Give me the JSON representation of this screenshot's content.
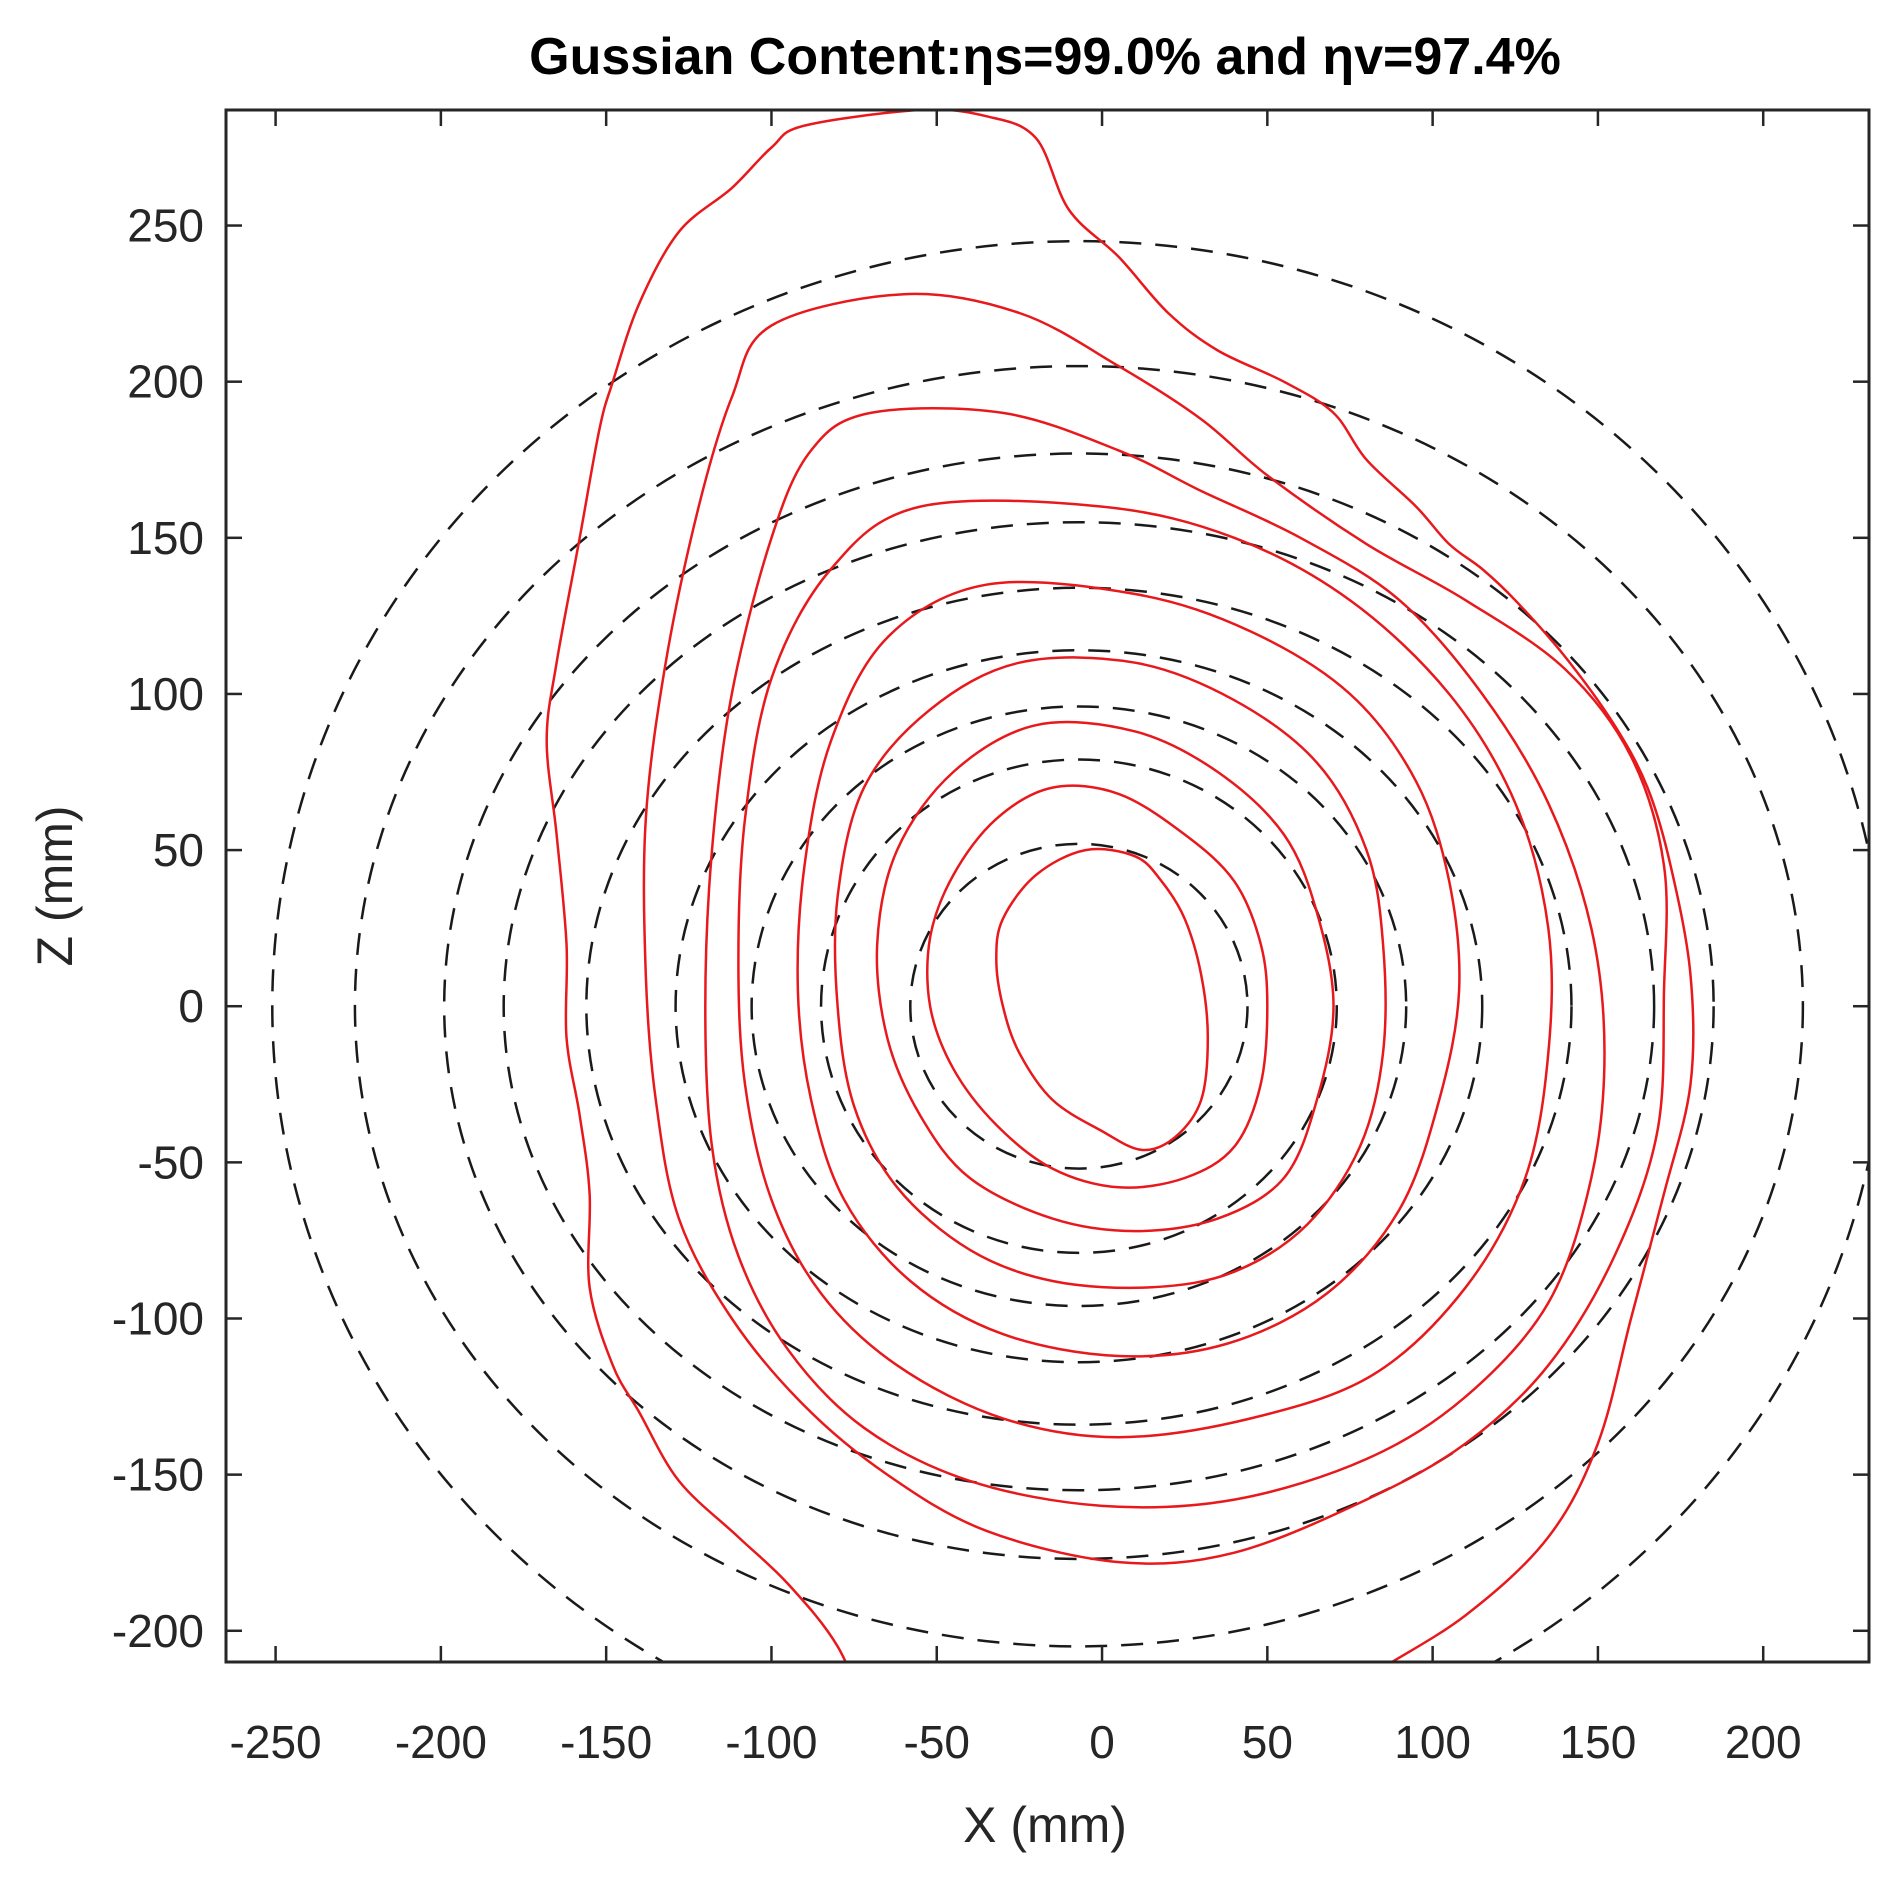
{
  "chart_data": {
    "type": "contour",
    "title": "Gussian Content:ηs=99.0% and ηv=97.4%",
    "xlabel": "X (mm)",
    "ylabel": "Z (mm)",
    "xlim": [
      -265,
      232
    ],
    "ylim": [
      -210,
      287
    ],
    "xticks": [
      -250,
      -200,
      -150,
      -100,
      -50,
      0,
      50,
      100,
      150,
      200
    ],
    "yticks": [
      -200,
      -150,
      -100,
      -50,
      0,
      50,
      100,
      150,
      200,
      250
    ],
    "xtick_labels": [
      "-250",
      "-200",
      "-150",
      "-100",
      "-50",
      "0",
      "50",
      "100",
      "150",
      "200"
    ],
    "ytick_labels": [
      "-200",
      "-150",
      "-100",
      "-50",
      "0",
      "50",
      "100",
      "150",
      "200",
      "250"
    ],
    "grid": false,
    "colors": {
      "measured": "#e8191c",
      "gaussian_fit": "#1a1a1a",
      "axes": "#262626"
    },
    "series": [
      {
        "style": "dashed",
        "color": "#1a1a1a",
        "ellipses": [
          {
            "cx": -7,
            "cz": 0,
            "rx": 51,
            "rz": 52
          },
          {
            "cx": -7,
            "cz": 0,
            "rx": 78,
            "rz": 79
          },
          {
            "cx": -7,
            "cz": 0,
            "rx": 99,
            "rz": 96
          },
          {
            "cx": -7,
            "cz": 0,
            "rx": 122,
            "rz": 114
          },
          {
            "cx": -7,
            "cz": 0,
            "rx": 149,
            "rz": 134
          },
          {
            "cx": -7,
            "cz": 0,
            "rx": 174,
            "rz": 155
          },
          {
            "cx": -7,
            "cz": 0,
            "rx": 192,
            "rz": 177
          },
          {
            "cx": -7,
            "cz": 0,
            "rx": 219,
            "rz": 205
          },
          {
            "cx": -7,
            "cz": 0,
            "rx": 244,
            "rz": 245
          }
        ]
      },
      {
        "style": "solid",
        "color": "#e8191c",
        "contours": [
          [
            [
              -5,
              50
            ],
            [
              10,
              48
            ],
            [
              18,
              40
            ],
            [
              25,
              28
            ],
            [
              30,
              10
            ],
            [
              32,
              -10
            ],
            [
              30,
              -30
            ],
            [
              22,
              -42
            ],
            [
              12,
              -46
            ],
            [
              0,
              -40
            ],
            [
              -15,
              -30
            ],
            [
              -25,
              -15
            ],
            [
              -30,
              0
            ],
            [
              -32,
              15
            ],
            [
              -30,
              28
            ],
            [
              -20,
              42
            ]
          ],
          [
            [
              -15,
              70
            ],
            [
              5,
              68
            ],
            [
              25,
              55
            ],
            [
              40,
              40
            ],
            [
              48,
              20
            ],
            [
              50,
              0
            ],
            [
              48,
              -25
            ],
            [
              40,
              -45
            ],
            [
              25,
              -55
            ],
            [
              5,
              -58
            ],
            [
              -15,
              -52
            ],
            [
              -32,
              -38
            ],
            [
              -45,
              -20
            ],
            [
              -52,
              0
            ],
            [
              -52,
              22
            ],
            [
              -45,
              42
            ],
            [
              -32,
              60
            ]
          ],
          [
            [
              -20,
              90
            ],
            [
              10,
              88
            ],
            [
              35,
              75
            ],
            [
              55,
              55
            ],
            [
              65,
              30
            ],
            [
              70,
              0
            ],
            [
              65,
              -30
            ],
            [
              55,
              -55
            ],
            [
              35,
              -68
            ],
            [
              10,
              -72
            ],
            [
              -15,
              -68
            ],
            [
              -40,
              -55
            ],
            [
              -55,
              -35
            ],
            [
              -65,
              -10
            ],
            [
              -68,
              20
            ],
            [
              -62,
              50
            ],
            [
              -45,
              75
            ]
          ],
          [
            [
              -25,
              110
            ],
            [
              10,
              110
            ],
            [
              40,
              98
            ],
            [
              65,
              78
            ],
            [
              80,
              50
            ],
            [
              85,
              20
            ],
            [
              85,
              -15
            ],
            [
              78,
              -45
            ],
            [
              62,
              -70
            ],
            [
              40,
              -85
            ],
            [
              15,
              -90
            ],
            [
              -15,
              -88
            ],
            [
              -40,
              -78
            ],
            [
              -62,
              -58
            ],
            [
              -75,
              -32
            ],
            [
              -80,
              0
            ],
            [
              -80,
              35
            ],
            [
              -72,
              70
            ],
            [
              -52,
              95
            ]
          ],
          [
            [
              -35,
              135
            ],
            [
              10,
              132
            ],
            [
              45,
              120
            ],
            [
              75,
              100
            ],
            [
              95,
              72
            ],
            [
              105,
              40
            ],
            [
              108,
              5
            ],
            [
              102,
              -30
            ],
            [
              90,
              -65
            ],
            [
              68,
              -92
            ],
            [
              38,
              -108
            ],
            [
              5,
              -112
            ],
            [
              -30,
              -105
            ],
            [
              -58,
              -88
            ],
            [
              -78,
              -62
            ],
            [
              -88,
              -30
            ],
            [
              -92,
              5
            ],
            [
              -90,
              45
            ],
            [
              -82,
              85
            ],
            [
              -65,
              118
            ]
          ],
          [
            [
              -55,
              160
            ],
            [
              0,
              160
            ],
            [
              40,
              150
            ],
            [
              75,
              130
            ],
            [
              105,
              100
            ],
            [
              125,
              65
            ],
            [
              135,
              25
            ],
            [
              135,
              -15
            ],
            [
              128,
              -55
            ],
            [
              110,
              -90
            ],
            [
              82,
              -118
            ],
            [
              45,
              -132
            ],
            [
              5,
              -138
            ],
            [
              -30,
              -132
            ],
            [
              -62,
              -115
            ],
            [
              -85,
              -92
            ],
            [
              -100,
              -62
            ],
            [
              -108,
              -25
            ],
            [
              -110,
              15
            ],
            [
              -108,
              60
            ],
            [
              -100,
              105
            ],
            [
              -82,
              140
            ]
          ],
          [
            [
              -70,
              190
            ],
            [
              -30,
              190
            ],
            [
              5,
              178
            ],
            [
              30,
              165
            ],
            [
              60,
              150
            ],
            [
              90,
              130
            ],
            [
              115,
              100
            ],
            [
              135,
              65
            ],
            [
              148,
              25
            ],
            [
              152,
              -15
            ],
            [
              148,
              -55
            ],
            [
              135,
              -95
            ],
            [
              110,
              -125
            ],
            [
              80,
              -145
            ],
            [
              40,
              -158
            ],
            [
              0,
              -160
            ],
            [
              -40,
              -152
            ],
            [
              -72,
              -135
            ],
            [
              -95,
              -110
            ],
            [
              -110,
              -80
            ],
            [
              -118,
              -45
            ],
            [
              -120,
              0
            ],
            [
              -118,
              50
            ],
            [
              -112,
              100
            ],
            [
              -100,
              150
            ],
            [
              -88,
              178
            ]
          ],
          [
            [
              -100,
              218
            ],
            [
              -60,
              228
            ],
            [
              -25,
              222
            ],
            [
              5,
              205
            ],
            [
              30,
              188
            ],
            [
              50,
              170
            ],
            [
              80,
              148
            ],
            [
              110,
              130
            ],
            [
              140,
              108
            ],
            [
              160,
              80
            ],
            [
              170,
              45
            ],
            [
              170,
              5
            ],
            [
              168,
              -40
            ],
            [
              155,
              -80
            ],
            [
              135,
              -115
            ],
            [
              110,
              -140
            ],
            [
              80,
              -158
            ],
            [
              40,
              -175
            ],
            [
              5,
              -178
            ],
            [
              -35,
              -168
            ],
            [
              -65,
              -150
            ],
            [
              -90,
              -128
            ],
            [
              -112,
              -100
            ],
            [
              -128,
              -68
            ],
            [
              -135,
              -30
            ],
            [
              -138,
              10
            ],
            [
              -138,
              60
            ],
            [
              -132,
              110
            ],
            [
              -122,
              160
            ],
            [
              -112,
              195
            ]
          ],
          [
            [
              -90,
              282
            ],
            [
              -55,
              287
            ],
            [
              -35,
              285
            ],
            [
              -20,
              278
            ],
            [
              -10,
              255
            ],
            [
              5,
              240
            ],
            [
              20,
              222
            ],
            [
              35,
              210
            ],
            [
              55,
              200
            ],
            [
              70,
              190
            ],
            [
              80,
              175
            ],
            [
              95,
              160
            ],
            [
              105,
              148
            ],
            [
              115,
              140
            ],
            [
              125,
              130
            ],
            [
              140,
              112
            ],
            [
              155,
              90
            ],
            [
              165,
              70
            ],
            [
              172,
              45
            ],
            [
              178,
              10
            ],
            [
              178,
              -25
            ],
            [
              170,
              -60
            ],
            [
              160,
              -100
            ],
            [
              150,
              -140
            ],
            [
              135,
              -170
            ],
            [
              110,
              -195
            ],
            [
              80,
              -215
            ],
            [
              60,
              -230
            ],
            [
              40,
              -240
            ],
            [
              20,
              -258
            ],
            [
              0,
              -265
            ],
            [
              -30,
              -262
            ],
            [
              -58,
              -258
            ],
            [
              -70,
              -230
            ],
            [
              -80,
              -205
            ],
            [
              -95,
              -185
            ],
            [
              -110,
              -170
            ],
            [
              -128,
              -152
            ],
            [
              -140,
              -130
            ],
            [
              -148,
              -115
            ],
            [
              -155,
              -90
            ],
            [
              -155,
              -60
            ],
            [
              -158,
              -35
            ],
            [
              -162,
              -10
            ],
            [
              -162,
              20
            ],
            [
              -165,
              55
            ],
            [
              -168,
              85
            ],
            [
              -165,
              110
            ],
            [
              -158,
              150
            ],
            [
              -152,
              185
            ],
            [
              -148,
              200
            ],
            [
              -140,
              225
            ],
            [
              -128,
              248
            ],
            [
              -112,
              262
            ],
            [
              -100,
              275
            ]
          ]
        ]
      }
    ]
  }
}
